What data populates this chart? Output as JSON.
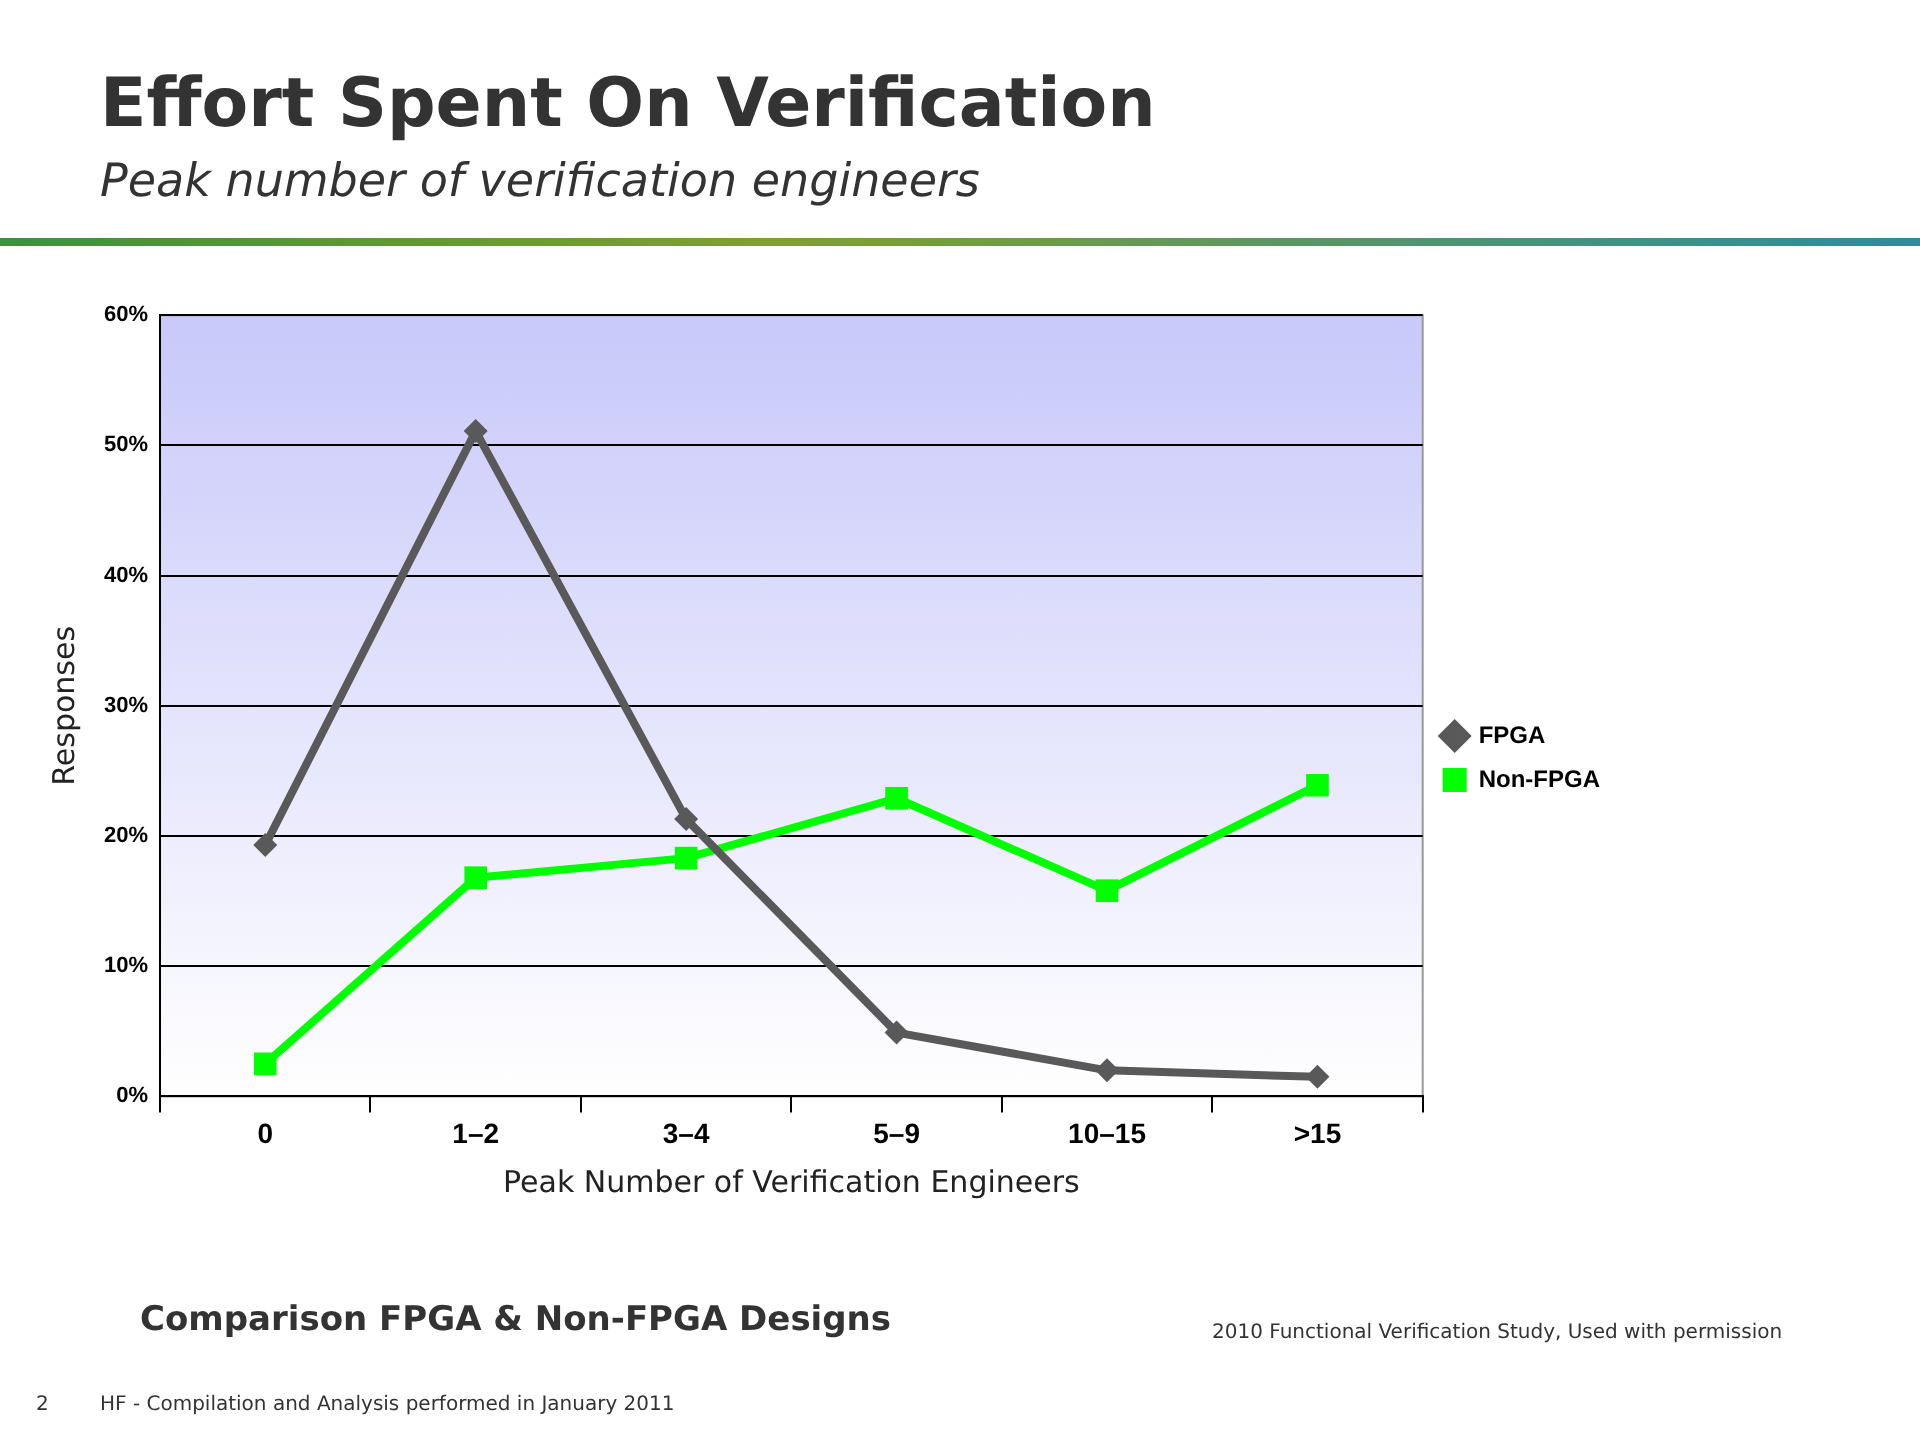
{
  "chart_data": {
    "type": "line",
    "title": "Effort Spent On Verification",
    "subtitle": "Peak number of verification engineers",
    "xlabel": "Peak Number of Verification Engineers",
    "ylabel": "Responses",
    "categories": [
      "0",
      "1–2",
      "3–4",
      "5–9",
      "10–15",
      ">15"
    ],
    "series": [
      {
        "name": "FPGA",
        "color": "#595959",
        "marker": "diamond",
        "values": [
          19.3,
          51.1,
          21.3,
          4.9,
          2.0,
          1.5
        ]
      },
      {
        "name": "Non-FPGA",
        "color": "#00ff00",
        "marker": "square",
        "values": [
          2.5,
          16.8,
          18.3,
          22.9,
          15.8,
          23.9
        ]
      }
    ],
    "ylim": [
      0,
      60
    ],
    "yticks": [
      {
        "value": 0,
        "label": "0%"
      },
      {
        "value": 10,
        "label": "10%"
      },
      {
        "value": 20,
        "label": "20%"
      },
      {
        "value": 30,
        "label": "30%"
      },
      {
        "value": 40,
        "label": "40%"
      },
      {
        "value": 50,
        "label": "50%"
      },
      {
        "value": 60,
        "label": "60%"
      }
    ],
    "grid": "y",
    "legend": "right",
    "annotations": [
      "Comparison FPGA & Non-FPGA Designs",
      "2010 Functional Verification Study,  Used with permission",
      "2",
      "HF - Compilation and Analysis performed in January 2011"
    ]
  }
}
